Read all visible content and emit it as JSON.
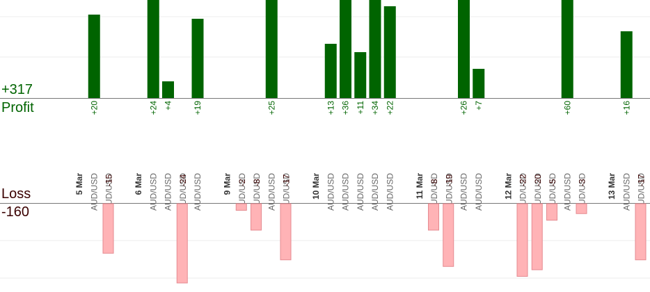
{
  "summary": {
    "profit_total": "+317",
    "profit_label": "Profit",
    "loss_label": "Loss",
    "loss_total": "-160"
  },
  "colors": {
    "profit_bar": "#006400",
    "profit_text": "#006400",
    "loss_bar": "#ffb3b6",
    "loss_bar_border": "#e58a90",
    "loss_text": "#3a0000",
    "axis": "#777777",
    "grid": "#eeeeee",
    "pair_text": "#666666",
    "date_text": "#333333"
  },
  "chart_data": {
    "type": "bar",
    "title": "",
    "grid": true,
    "columns": [
      {
        "label": "5 Mar",
        "kind": "date"
      },
      {
        "label": "AUD/USD",
        "kind": "trade",
        "value": 20
      },
      {
        "label": "AUD/USD",
        "kind": "trade",
        "value": -15
      },
      {
        "label": "",
        "kind": "gap"
      },
      {
        "label": "6 Mar",
        "kind": "date"
      },
      {
        "label": "AUD/USD",
        "kind": "trade",
        "value": 24
      },
      {
        "label": "AUD/USD",
        "kind": "trade",
        "value": 4
      },
      {
        "label": "AUD/USD",
        "kind": "trade",
        "value": -24
      },
      {
        "label": "AUD/USD",
        "kind": "trade",
        "value": 19
      },
      {
        "label": "",
        "kind": "gap"
      },
      {
        "label": "9 Mar",
        "kind": "date"
      },
      {
        "label": "AUD/USD",
        "kind": "trade",
        "value": -2
      },
      {
        "label": "AUD/USD",
        "kind": "trade",
        "value": -8
      },
      {
        "label": "AUD/USD",
        "kind": "trade",
        "value": 25
      },
      {
        "label": "AUD/USD",
        "kind": "trade",
        "value": -17
      },
      {
        "label": "",
        "kind": "gap"
      },
      {
        "label": "10 Mar",
        "kind": "date"
      },
      {
        "label": "AUD/USD",
        "kind": "trade",
        "value": 13
      },
      {
        "label": "AUD/USD",
        "kind": "trade",
        "value": 36
      },
      {
        "label": "AUD/USD",
        "kind": "trade",
        "value": 11
      },
      {
        "label": "AUD/USD",
        "kind": "trade",
        "value": 34
      },
      {
        "label": "AUD/USD",
        "kind": "trade",
        "value": 22
      },
      {
        "label": "",
        "kind": "gap"
      },
      {
        "label": "11 Mar",
        "kind": "date"
      },
      {
        "label": "AUD/USD",
        "kind": "trade",
        "value": -8
      },
      {
        "label": "AUD/USD",
        "kind": "trade",
        "value": -19
      },
      {
        "label": "AUD/USD",
        "kind": "trade",
        "value": 26
      },
      {
        "label": "AUD/USD",
        "kind": "trade",
        "value": 7
      },
      {
        "label": "",
        "kind": "gap"
      },
      {
        "label": "12 Mar",
        "kind": "date"
      },
      {
        "label": "AUD/USD",
        "kind": "trade",
        "value": -22
      },
      {
        "label": "AUD/USD",
        "kind": "trade",
        "value": -20
      },
      {
        "label": "AUD/USD",
        "kind": "trade",
        "value": -5
      },
      {
        "label": "AUD/USD",
        "kind": "trade",
        "value": 60
      },
      {
        "label": "AUD/USD",
        "kind": "trade",
        "value": -3
      },
      {
        "label": "",
        "kind": "gap"
      },
      {
        "label": "13 Mar",
        "kind": "date"
      },
      {
        "label": "AUD/USD",
        "kind": "trade",
        "value": 16
      },
      {
        "label": "AUD/USD",
        "kind": "trade",
        "value": -17
      }
    ]
  }
}
